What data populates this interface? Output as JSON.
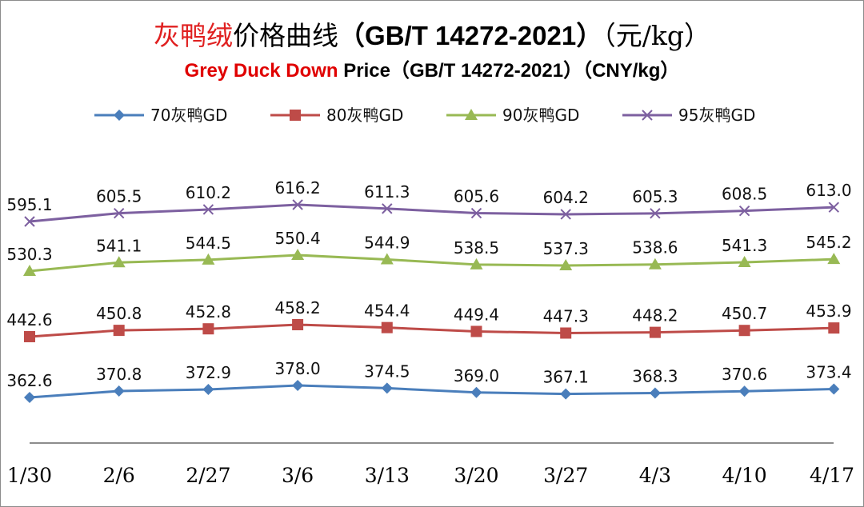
{
  "chart_data": {
    "type": "line",
    "title_cn_red": "灰鸭绒",
    "title_cn_rest": "价格曲线",
    "title_cn_std": "（GB/T 14272-2021）",
    "title_cn_unit": "（元/kg）",
    "title_en_red": "Grey Duck Down",
    "title_en_rest": " Price（GB/T 14272-2021）（CNY/kg）",
    "categories": [
      "1/30",
      "2/6",
      "2/27",
      "3/6",
      "3/13",
      "3/20",
      "3/27",
      "4/3",
      "4/10",
      "4/17"
    ],
    "legend_position": "top",
    "grid": false,
    "series": [
      {
        "name": "70灰鸭GD",
        "color": "#4a7ebb",
        "marker": "diamond",
        "values": [
          362.6,
          370.8,
          372.9,
          378.0,
          374.5,
          369.0,
          367.1,
          368.3,
          370.6,
          373.4
        ],
        "labels": [
          "362.6",
          "370.8",
          "372.9",
          "378.0",
          "374.5",
          "369.0",
          "367.1",
          "368.3",
          "370.6",
          "373.4"
        ]
      },
      {
        "name": "80灰鸭GD",
        "color": "#be4b48",
        "marker": "square",
        "values": [
          442.6,
          450.8,
          452.8,
          458.2,
          454.4,
          449.4,
          447.3,
          448.2,
          450.7,
          453.9
        ],
        "labels": [
          "442.6",
          "450.8",
          "452.8",
          "458.2",
          "454.4",
          "449.4",
          "447.3",
          "448.2",
          "450.7",
          "453.9"
        ]
      },
      {
        "name": "90灰鸭GD",
        "color": "#98b954",
        "marker": "triangle",
        "values": [
          530.3,
          541.1,
          544.5,
          550.4,
          544.9,
          538.5,
          537.3,
          538.6,
          541.3,
          545.2
        ],
        "labels": [
          "530.3",
          "541.1",
          "544.5",
          "550.4",
          "544.9",
          "538.5",
          "537.3",
          "538.6",
          "541.3",
          "545.2"
        ]
      },
      {
        "name": "95灰鸭GD",
        "color": "#7d60a0",
        "marker": "x",
        "values": [
          595.1,
          605.5,
          610.2,
          616.2,
          611.3,
          605.6,
          604.2,
          605.3,
          608.5,
          613.0
        ],
        "labels": [
          "595.1",
          "605.5",
          "610.2",
          "616.2",
          "611.3",
          "605.6",
          "604.2",
          "605.3",
          "608.5",
          "613.0"
        ]
      }
    ]
  }
}
